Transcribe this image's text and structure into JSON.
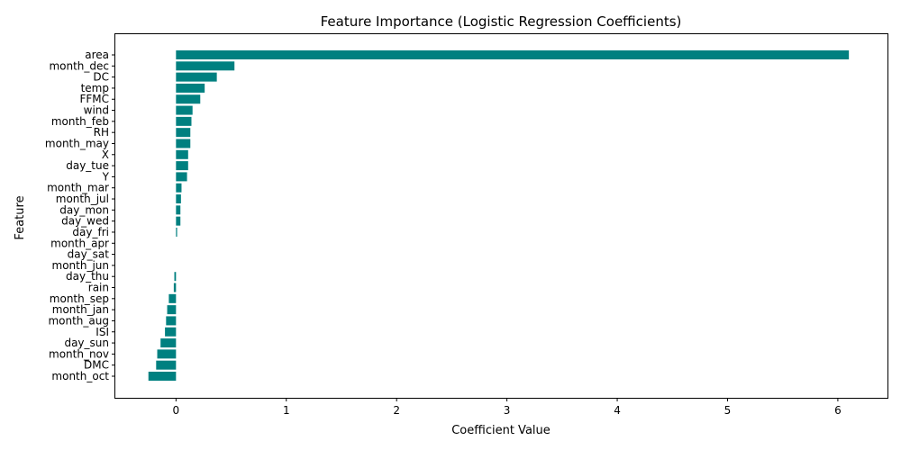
{
  "chart_data": {
    "type": "bar",
    "orientation": "horizontal",
    "title": "Feature Importance (Logistic Regression Coefficients)",
    "xlabel": "Coefficient Value",
    "ylabel": "Feature",
    "xlim": [
      -0.55,
      6.45
    ],
    "x_ticks": [
      0,
      1,
      2,
      3,
      4,
      5,
      6
    ],
    "bar_color": "#008080",
    "grid": false,
    "categories": [
      "area",
      "month_dec",
      "DC",
      "temp",
      "FFMC",
      "wind",
      "month_feb",
      "RH",
      "month_may",
      "X",
      "day_tue",
      "Y",
      "month_mar",
      "month_jul",
      "day_mon",
      "day_wed",
      "day_fri",
      "month_apr",
      "day_sat",
      "month_jun",
      "day_thu",
      "rain",
      "month_sep",
      "month_jan",
      "month_aug",
      "ISI",
      "day_sun",
      "month_nov",
      "DMC",
      "month_oct"
    ],
    "values": [
      6.1,
      0.53,
      0.37,
      0.26,
      0.22,
      0.15,
      0.14,
      0.13,
      0.13,
      0.11,
      0.11,
      0.1,
      0.05,
      0.045,
      0.04,
      0.04,
      0.01,
      0.0,
      0.0,
      0.0,
      -0.015,
      -0.02,
      -0.065,
      -0.08,
      -0.09,
      -0.1,
      -0.14,
      -0.17,
      -0.18,
      -0.25
    ]
  }
}
